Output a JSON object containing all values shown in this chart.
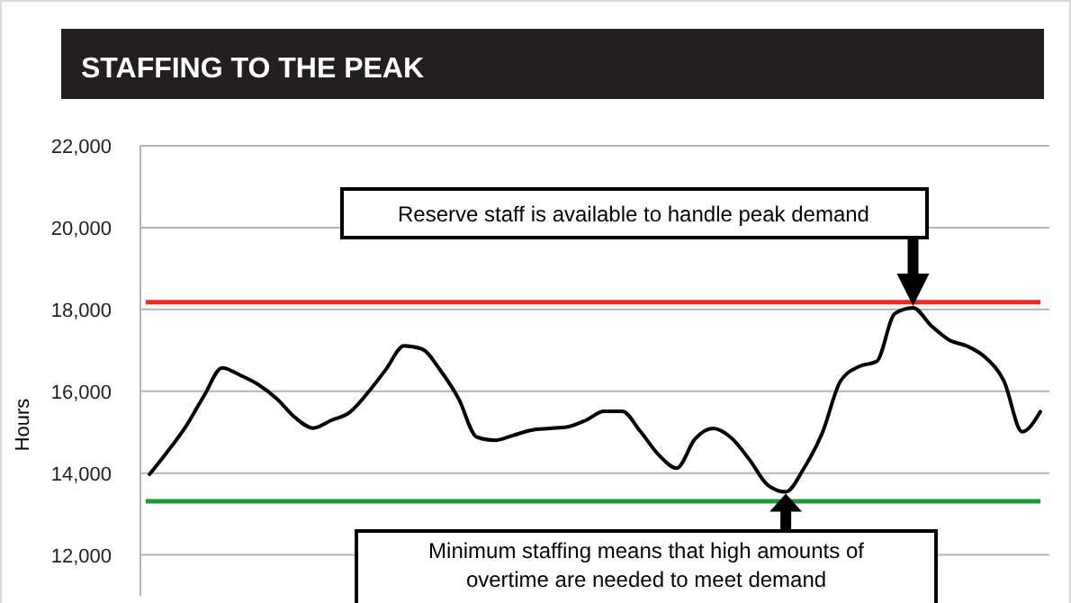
{
  "chart_data": {
    "type": "line",
    "title": "STAFFING TO THE PEAK",
    "ylabel": "Hours",
    "categories": [
      null,
      null,
      null,
      null,
      null,
      null,
      null,
      null,
      null,
      null,
      null,
      null,
      null,
      null,
      null,
      null,
      null,
      null,
      null,
      null,
      null,
      null,
      null,
      null,
      null,
      null,
      null,
      null,
      null,
      null,
      null,
      null,
      null,
      null,
      null,
      null,
      null,
      null,
      null,
      null,
      null,
      null,
      null,
      null,
      null,
      null,
      null,
      null,
      null,
      null
    ],
    "series": [
      {
        "color": "#000000",
        "values": [
          13970,
          14530,
          15140,
          15890,
          16570,
          16390,
          16160,
          15820,
          15360,
          15100,
          15290,
          15480,
          15960,
          16530,
          17110,
          17030,
          16510,
          15820,
          14880,
          14800,
          14920,
          15050,
          15090,
          15130,
          15290,
          15510,
          15510,
          15020,
          14450,
          14120,
          14830,
          15090,
          14860,
          14330,
          13710,
          13540,
          14120,
          14970,
          16240,
          16600,
          16730,
          17900,
          18040,
          17600,
          17250,
          17100,
          16820,
          16250,
          15010,
          15500
        ]
      }
    ],
    "ylim": [
      11000,
      22000
    ],
    "yticks": [
      {
        "value": 12000,
        "label": "12,000"
      },
      {
        "value": 14000,
        "label": "14,000"
      },
      {
        "value": 16000,
        "label": "16,000"
      },
      {
        "value": 18000,
        "label": "18,000"
      },
      {
        "value": 20000,
        "label": "20,000"
      },
      {
        "value": 22000,
        "label": "22,000"
      }
    ],
    "grid": "y",
    "tick_labels": "y",
    "marker": "none",
    "line_style": "solid",
    "ref_lines": [
      {
        "axis": "y",
        "value": 18180,
        "color": "#ee2a24"
      },
      {
        "axis": "y",
        "value": 13310,
        "color": "#1e9a3c"
      }
    ],
    "annotations": [
      "Reserve staff is available to handle peak demand",
      "Minimum staffing means that high amounts of overtime are needed to meet demand"
    ]
  }
}
